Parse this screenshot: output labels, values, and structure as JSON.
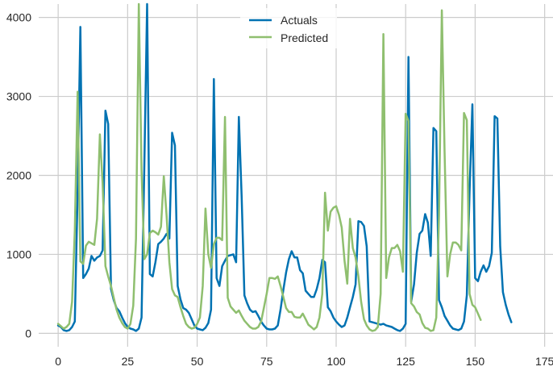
{
  "chart_data": {
    "type": "line",
    "title": "",
    "xlabel": "",
    "ylabel": "",
    "xlim": [
      -7,
      178
    ],
    "ylim": [
      -170,
      4170
    ],
    "xticks": [
      0,
      25,
      50,
      75,
      100,
      125,
      150,
      175
    ],
    "yticks": [
      0,
      1000,
      2000,
      3000,
      4000
    ],
    "grid": true,
    "legend_position": "top-center",
    "series": [
      {
        "name": "Actuals",
        "color": "#0072b2",
        "points": [
          [
            0,
            100
          ],
          [
            1,
            80
          ],
          [
            2,
            40
          ],
          [
            3,
            30
          ],
          [
            4,
            40
          ],
          [
            5,
            80
          ],
          [
            6,
            150
          ],
          [
            7,
            1800
          ],
          [
            8,
            3880
          ],
          [
            9,
            700
          ],
          [
            10,
            750
          ],
          [
            11,
            820
          ],
          [
            12,
            980
          ],
          [
            13,
            920
          ],
          [
            14,
            960
          ],
          [
            15,
            980
          ],
          [
            16,
            1050
          ],
          [
            17,
            2820
          ],
          [
            18,
            2650
          ],
          [
            19,
            560
          ],
          [
            20,
            420
          ],
          [
            21,
            320
          ],
          [
            22,
            280
          ],
          [
            23,
            200
          ],
          [
            24,
            130
          ],
          [
            25,
            80
          ],
          [
            26,
            60
          ],
          [
            27,
            50
          ],
          [
            28,
            30
          ],
          [
            29,
            60
          ],
          [
            30,
            200
          ],
          [
            31,
            2100
          ],
          [
            32,
            4170
          ],
          [
            33,
            750
          ],
          [
            34,
            720
          ],
          [
            35,
            900
          ],
          [
            36,
            1130
          ],
          [
            37,
            1160
          ],
          [
            38,
            1200
          ],
          [
            39,
            1260
          ],
          [
            40,
            1200
          ],
          [
            41,
            2540
          ],
          [
            42,
            2380
          ],
          [
            43,
            600
          ],
          [
            44,
            430
          ],
          [
            45,
            320
          ],
          [
            46,
            300
          ],
          [
            47,
            260
          ],
          [
            48,
            180
          ],
          [
            49,
            100
          ],
          [
            50,
            60
          ],
          [
            51,
            50
          ],
          [
            52,
            40
          ],
          [
            53,
            70
          ],
          [
            54,
            130
          ],
          [
            55,
            300
          ],
          [
            56,
            3220
          ],
          [
            57,
            700
          ],
          [
            58,
            600
          ],
          [
            59,
            850
          ],
          [
            60,
            920
          ],
          [
            61,
            980
          ],
          [
            62,
            990
          ],
          [
            63,
            1000
          ],
          [
            64,
            900
          ],
          [
            65,
            2740
          ],
          [
            66,
            1720
          ],
          [
            67,
            480
          ],
          [
            68,
            380
          ],
          [
            69,
            300
          ],
          [
            70,
            270
          ],
          [
            71,
            280
          ],
          [
            72,
            220
          ],
          [
            73,
            150
          ],
          [
            74,
            100
          ],
          [
            75,
            60
          ],
          [
            76,
            50
          ],
          [
            77,
            50
          ],
          [
            78,
            60
          ],
          [
            79,
            100
          ],
          [
            80,
            300
          ],
          [
            81,
            550
          ],
          [
            82,
            770
          ],
          [
            83,
            940
          ],
          [
            84,
            1040
          ],
          [
            85,
            960
          ],
          [
            86,
            960
          ],
          [
            87,
            800
          ],
          [
            88,
            760
          ],
          [
            89,
            540
          ],
          [
            90,
            500
          ],
          [
            91,
            460
          ],
          [
            92,
            460
          ],
          [
            93,
            560
          ],
          [
            94,
            700
          ],
          [
            95,
            930
          ],
          [
            96,
            900
          ],
          [
            97,
            330
          ],
          [
            98,
            280
          ],
          [
            99,
            200
          ],
          [
            100,
            150
          ],
          [
            101,
            110
          ],
          [
            102,
            80
          ],
          [
            103,
            100
          ],
          [
            104,
            200
          ],
          [
            105,
            330
          ],
          [
            106,
            460
          ],
          [
            107,
            620
          ],
          [
            108,
            1420
          ],
          [
            109,
            1410
          ],
          [
            110,
            1360
          ],
          [
            111,
            1100
          ],
          [
            112,
            150
          ],
          [
            113,
            140
          ],
          [
            114,
            130
          ],
          [
            115,
            120
          ],
          [
            116,
            110
          ],
          [
            117,
            120
          ],
          [
            118,
            100
          ],
          [
            119,
            90
          ],
          [
            120,
            80
          ],
          [
            121,
            60
          ],
          [
            122,
            40
          ],
          [
            123,
            30
          ],
          [
            124,
            60
          ],
          [
            125,
            120
          ],
          [
            126,
            3500
          ],
          [
            127,
            400
          ],
          [
            128,
            620
          ],
          [
            129,
            1020
          ],
          [
            130,
            1260
          ],
          [
            131,
            1300
          ],
          [
            132,
            1510
          ],
          [
            133,
            1400
          ],
          [
            134,
            980
          ],
          [
            135,
            2600
          ],
          [
            136,
            2560
          ],
          [
            137,
            420
          ],
          [
            138,
            330
          ],
          [
            139,
            220
          ],
          [
            140,
            160
          ],
          [
            141,
            100
          ],
          [
            142,
            60
          ],
          [
            143,
            50
          ],
          [
            144,
            40
          ],
          [
            145,
            60
          ],
          [
            146,
            150
          ],
          [
            147,
            480
          ],
          [
            148,
            1800
          ],
          [
            149,
            2900
          ],
          [
            150,
            700
          ],
          [
            151,
            660
          ],
          [
            152,
            780
          ],
          [
            153,
            860
          ],
          [
            154,
            780
          ],
          [
            155,
            850
          ],
          [
            156,
            1020
          ],
          [
            157,
            2750
          ],
          [
            158,
            2720
          ],
          [
            159,
            1100
          ],
          [
            160,
            520
          ],
          [
            161,
            360
          ],
          [
            162,
            240
          ],
          [
            163,
            140
          ]
        ]
      },
      {
        "name": "Predicted",
        "color": "#8fbf6f",
        "points": [
          [
            0,
            120
          ],
          [
            1,
            90
          ],
          [
            2,
            60
          ],
          [
            3,
            80
          ],
          [
            4,
            120
          ],
          [
            5,
            400
          ],
          [
            6,
            1300
          ],
          [
            7,
            3060
          ],
          [
            8,
            910
          ],
          [
            9,
            880
          ],
          [
            10,
            1110
          ],
          [
            11,
            1160
          ],
          [
            12,
            1140
          ],
          [
            13,
            1120
          ],
          [
            14,
            1450
          ],
          [
            15,
            2520
          ],
          [
            16,
            1900
          ],
          [
            17,
            850
          ],
          [
            18,
            720
          ],
          [
            19,
            600
          ],
          [
            20,
            450
          ],
          [
            21,
            300
          ],
          [
            22,
            200
          ],
          [
            23,
            130
          ],
          [
            24,
            80
          ],
          [
            25,
            60
          ],
          [
            26,
            120
          ],
          [
            27,
            350
          ],
          [
            28,
            1200
          ],
          [
            29,
            4170
          ],
          [
            30,
            2060
          ],
          [
            31,
            940
          ],
          [
            32,
            1000
          ],
          [
            33,
            1270
          ],
          [
            34,
            1300
          ],
          [
            35,
            1280
          ],
          [
            36,
            1250
          ],
          [
            37,
            1350
          ],
          [
            38,
            1990
          ],
          [
            39,
            1500
          ],
          [
            40,
            900
          ],
          [
            41,
            560
          ],
          [
            42,
            480
          ],
          [
            43,
            460
          ],
          [
            44,
            330
          ],
          [
            45,
            220
          ],
          [
            46,
            120
          ],
          [
            47,
            80
          ],
          [
            48,
            60
          ],
          [
            49,
            70
          ],
          [
            50,
            120
          ],
          [
            51,
            200
          ],
          [
            52,
            600
          ],
          [
            53,
            1580
          ],
          [
            54,
            1000
          ],
          [
            55,
            830
          ],
          [
            56,
            1130
          ],
          [
            57,
            1210
          ],
          [
            58,
            1210
          ],
          [
            59,
            1180
          ],
          [
            60,
            2740
          ],
          [
            61,
            450
          ],
          [
            62,
            340
          ],
          [
            63,
            300
          ],
          [
            64,
            260
          ],
          [
            65,
            290
          ],
          [
            66,
            220
          ],
          [
            67,
            160
          ],
          [
            68,
            120
          ],
          [
            69,
            80
          ],
          [
            70,
            60
          ],
          [
            71,
            60
          ],
          [
            72,
            80
          ],
          [
            73,
            150
          ],
          [
            74,
            320
          ],
          [
            75,
            500
          ],
          [
            76,
            700
          ],
          [
            77,
            700
          ],
          [
            78,
            690
          ],
          [
            79,
            720
          ],
          [
            80,
            600
          ],
          [
            81,
            460
          ],
          [
            82,
            320
          ],
          [
            83,
            270
          ],
          [
            84,
            270
          ],
          [
            85,
            210
          ],
          [
            86,
            200
          ],
          [
            87,
            200
          ],
          [
            88,
            250
          ],
          [
            89,
            180
          ],
          [
            90,
            110
          ],
          [
            91,
            80
          ],
          [
            92,
            50
          ],
          [
            93,
            80
          ],
          [
            94,
            200
          ],
          [
            95,
            500
          ],
          [
            96,
            1780
          ],
          [
            97,
            1300
          ],
          [
            98,
            1540
          ],
          [
            99,
            1590
          ],
          [
            100,
            1610
          ],
          [
            101,
            1500
          ],
          [
            102,
            1340
          ],
          [
            103,
            920
          ],
          [
            104,
            630
          ],
          [
            105,
            1450
          ],
          [
            106,
            1080
          ],
          [
            107,
            960
          ],
          [
            108,
            720
          ],
          [
            109,
            400
          ],
          [
            110,
            180
          ],
          [
            111,
            100
          ],
          [
            112,
            50
          ],
          [
            113,
            30
          ],
          [
            114,
            40
          ],
          [
            115,
            80
          ],
          [
            116,
            500
          ],
          [
            117,
            3790
          ],
          [
            118,
            700
          ],
          [
            119,
            960
          ],
          [
            120,
            1080
          ],
          [
            121,
            1080
          ],
          [
            122,
            1120
          ],
          [
            123,
            1040
          ],
          [
            124,
            780
          ],
          [
            125,
            2780
          ],
          [
            126,
            2690
          ],
          [
            127,
            380
          ],
          [
            128,
            340
          ],
          [
            129,
            270
          ],
          [
            130,
            240
          ],
          [
            131,
            130
          ],
          [
            132,
            70
          ],
          [
            133,
            60
          ],
          [
            134,
            30
          ],
          [
            135,
            40
          ],
          [
            136,
            200
          ],
          [
            137,
            1500
          ],
          [
            138,
            4090
          ],
          [
            139,
            2300
          ],
          [
            140,
            720
          ],
          [
            141,
            1000
          ],
          [
            142,
            1150
          ],
          [
            143,
            1150
          ],
          [
            144,
            1120
          ],
          [
            145,
            1050
          ],
          [
            146,
            2790
          ],
          [
            147,
            2700
          ],
          [
            148,
            500
          ],
          [
            149,
            360
          ],
          [
            150,
            330
          ],
          [
            151,
            250
          ],
          [
            152,
            170
          ]
        ]
      }
    ]
  }
}
